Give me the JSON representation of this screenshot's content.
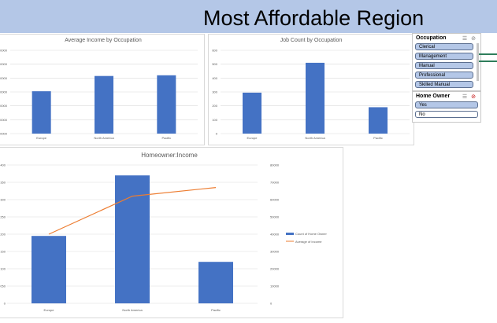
{
  "title": "Most Affordable Region",
  "colors": {
    "bar": "#4472c4",
    "line": "#ed7d31",
    "banner": "#b4c7e7",
    "slicer_selected": "#b4c7e7"
  },
  "chart_data": [
    {
      "type": "bar",
      "title": "Average Income by Occupation",
      "categories": [
        "Europe",
        "North America",
        "Pacific"
      ],
      "values": [
        61000,
        83000,
        84000
      ],
      "yticks": [
        "0000",
        "0000",
        "0000",
        "0000",
        "0000",
        "0000",
        "0000"
      ],
      "ylim": [
        0,
        120000
      ],
      "grid": true
    },
    {
      "type": "bar",
      "title": "Job Count by Occupation",
      "categories": [
        "Europe",
        "North America",
        "Pacific"
      ],
      "values": [
        295,
        510,
        190
      ],
      "yticks": [
        "0",
        "100",
        "200",
        "300",
        "400",
        "500",
        "600"
      ],
      "ylim": [
        0,
        600
      ],
      "grid": true
    },
    {
      "type": "bar",
      "title": "Homeowner:Income",
      "categories": [
        "Europe",
        "North America",
        "Pacific"
      ],
      "series": [
        {
          "name": "Count of Home Owner",
          "type": "bar",
          "axis": "left",
          "values": [
            195,
            370,
            120
          ]
        },
        {
          "name": "Average of Income",
          "type": "line",
          "axis": "right",
          "values": [
            40000,
            62000,
            67000
          ]
        }
      ],
      "yticks_left": [
        "0",
        "050",
        "100",
        "150",
        "200",
        "250",
        "300",
        "350",
        "400"
      ],
      "yticks_right": [
        "0",
        "10000",
        "20000",
        "30000",
        "40000",
        "50000",
        "60000",
        "70000",
        "80000"
      ],
      "ylim_left": [
        0,
        400
      ],
      "ylim_right": [
        0,
        80000
      ],
      "legend": "right",
      "grid": true
    }
  ],
  "slicers": [
    {
      "header": "Occupation",
      "items": [
        {
          "label": "Clerical",
          "selected": true
        },
        {
          "label": "Management",
          "selected": true
        },
        {
          "label": "Manual",
          "selected": true
        },
        {
          "label": "Professional",
          "selected": true
        },
        {
          "label": "Skilled Manual",
          "selected": true
        }
      ]
    },
    {
      "header": "Home Owner",
      "items": [
        {
          "label": "Yes",
          "selected": true
        },
        {
          "label": "No",
          "selected": false
        }
      ]
    }
  ],
  "icons": {
    "multiselect": "multiselect-icon",
    "clear_filter": "clear-filter-icon"
  }
}
